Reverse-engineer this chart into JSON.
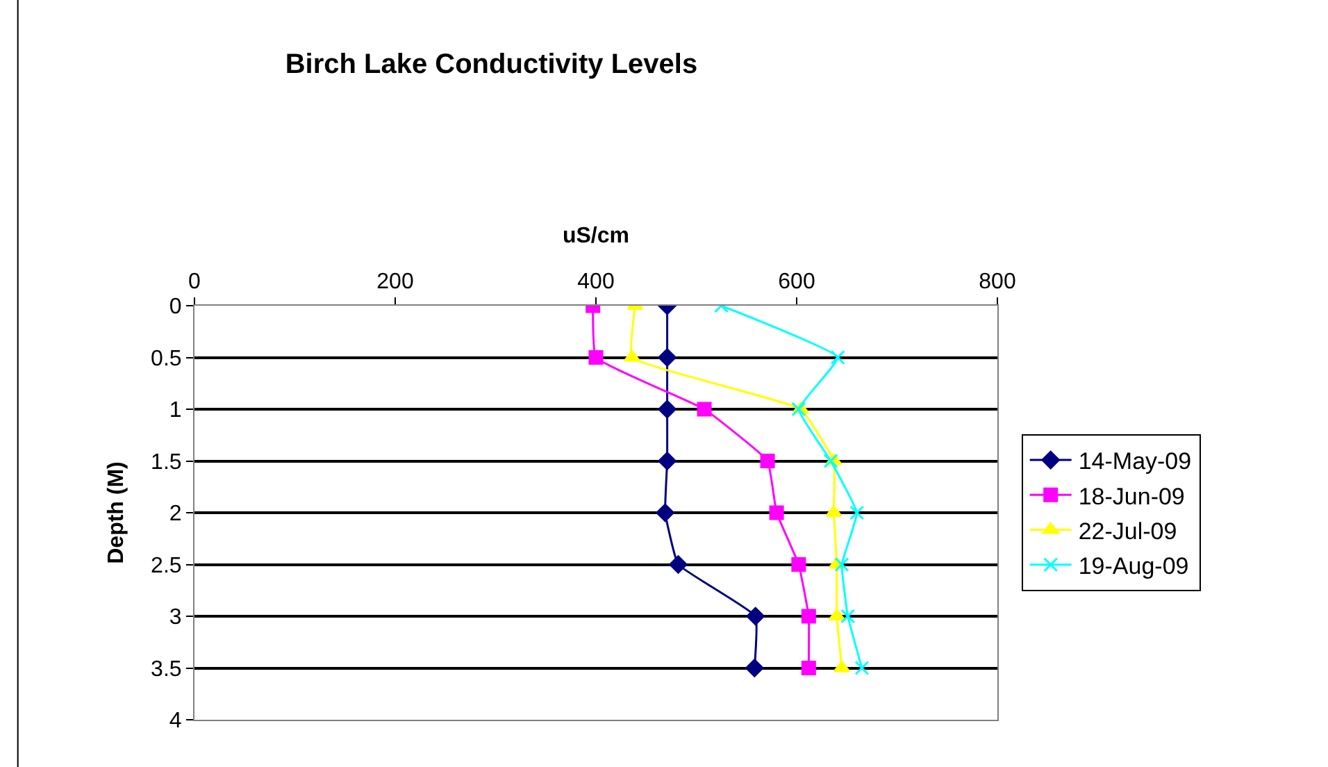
{
  "chart_data": {
    "type": "line",
    "title": "Birch Lake Conductivity Levels",
    "xlabel": "uS/cm",
    "ylabel": "Depth (M)",
    "orientation": "horizontal",
    "x": [
      0,
      0.5,
      1,
      1.5,
      2,
      2.5,
      3,
      3.5
    ],
    "series": [
      {
        "name": "14-May-09",
        "color": "#000080",
        "marker": "diamond",
        "values": [
          471,
          471,
          471,
          471,
          469,
          482,
          559,
          558
        ]
      },
      {
        "name": "18-Jun-09",
        "color": "#ff00ff",
        "marker": "square",
        "values": [
          397,
          400,
          508,
          571,
          580,
          602,
          612,
          612
        ]
      },
      {
        "name": "22-Jul-09",
        "color": "#ffff00",
        "marker": "triangle",
        "values": [
          439,
          436,
          604,
          637,
          637,
          640,
          640,
          645
        ]
      },
      {
        "name": "19-Aug-09",
        "color": "#00ffff",
        "marker": "cross",
        "values": [
          525,
          641,
          602,
          634,
          660,
          645,
          651,
          665
        ]
      }
    ],
    "xlim": [
      0,
      800
    ],
    "xticks": [
      0,
      200,
      400,
      600,
      800
    ],
    "ylim": [
      4,
      0
    ],
    "yticks": [
      0,
      0.5,
      1,
      1.5,
      2,
      2.5,
      3,
      3.5,
      4
    ],
    "grid": "y",
    "legend": "right"
  }
}
